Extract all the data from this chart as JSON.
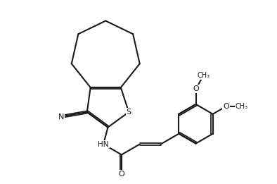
{
  "bg_color": "#ffffff",
  "line_color": "#1a1a1a",
  "line_width": 1.5,
  "figsize": [
    3.94,
    2.61
  ],
  "dpi": 100,
  "xlim": [
    0,
    3.94
  ],
  "ylim": [
    0,
    2.61
  ],
  "labels": {
    "S": "S",
    "N": "N",
    "HN": "HN",
    "O": "O",
    "OMe1": "O",
    "OMe2": "O",
    "Me1": "CH₃",
    "Me2": "CH₃"
  },
  "font_size": 7.5
}
